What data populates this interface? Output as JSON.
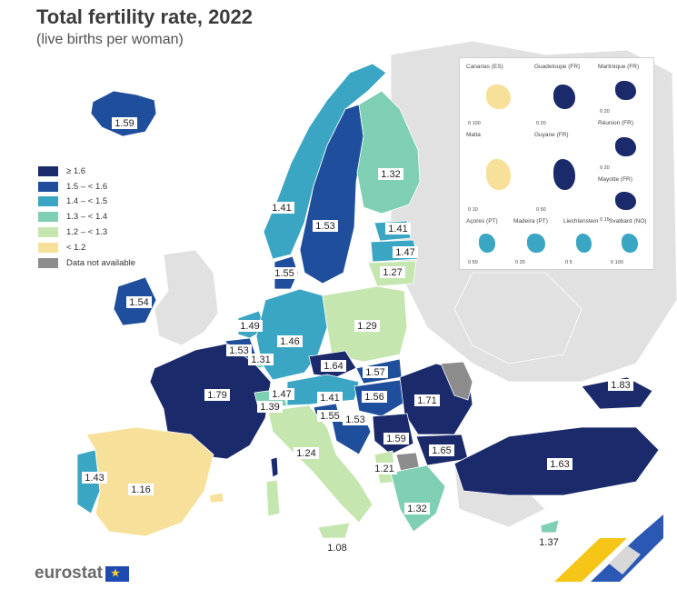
{
  "title": "Total fertility rate, 2022",
  "subtitle": "(live births per woman)",
  "legend": {
    "items": [
      {
        "label": "≥ 1.6",
        "color": "#1b2a6b"
      },
      {
        "label": "1.5 – < 1.6",
        "color": "#1f4f9c"
      },
      {
        "label": "1.4 – < 1.5",
        "color": "#3ba6c4"
      },
      {
        "label": "1.3 – < 1.4",
        "color": "#7fcfb4"
      },
      {
        "label": "1.2 – < 1.3",
        "color": "#c6e6b0"
      },
      {
        "label": "< 1.2",
        "color": "#f7e19a"
      },
      {
        "label": "Data not available",
        "color": "#8c8c8c"
      }
    ]
  },
  "map_values": [
    {
      "country": "Iceland",
      "value": "1.59"
    },
    {
      "country": "Norway",
      "value": "1.41"
    },
    {
      "country": "Sweden",
      "value": "1.53"
    },
    {
      "country": "Finland",
      "value": "1.32"
    },
    {
      "country": "Estonia",
      "value": "1.41"
    },
    {
      "country": "Latvia",
      "value": "1.47"
    },
    {
      "country": "Lithuania",
      "value": "1.27"
    },
    {
      "country": "Denmark",
      "value": "1.55"
    },
    {
      "country": "Ireland",
      "value": "1.54"
    },
    {
      "country": "Netherlands",
      "value": "1.49"
    },
    {
      "country": "Belgium",
      "value": "1.53"
    },
    {
      "country": "Luxembourg",
      "value": "1.31"
    },
    {
      "country": "Germany",
      "value": "1.46"
    },
    {
      "country": "Poland",
      "value": "1.29"
    },
    {
      "country": "France",
      "value": "1.79"
    },
    {
      "country": "Czechia",
      "value": "1.64"
    },
    {
      "country": "Slovakia",
      "value": "1.57"
    },
    {
      "country": "Switzerland",
      "value": "1.39"
    },
    {
      "country": "Liechtenstein",
      "value": "1.47"
    },
    {
      "country": "Austria",
      "value": "1.41"
    },
    {
      "country": "Hungary",
      "value": "1.56"
    },
    {
      "country": "Romania",
      "value": "1.71"
    },
    {
      "country": "Moldova",
      "value": "1.83"
    },
    {
      "country": "Slovenia",
      "value": "1.55"
    },
    {
      "country": "Croatia",
      "value": "1.53"
    },
    {
      "country": "Serbia",
      "value": "1.59"
    },
    {
      "country": "Bulgaria",
      "value": "1.65"
    },
    {
      "country": "Italy",
      "value": "1.24"
    },
    {
      "country": "Montenegro",
      "value": "1.21"
    },
    {
      "country": "Greece",
      "value": "1.32"
    },
    {
      "country": "Turkey",
      "value": "1.63"
    },
    {
      "country": "Portugal",
      "value": "1.43"
    },
    {
      "country": "Spain",
      "value": "1.16"
    },
    {
      "country": "Malta",
      "value": "1.08"
    },
    {
      "country": "Cyprus",
      "value": "1.37"
    }
  ],
  "insets": [
    {
      "label": "Canarias (ES)",
      "scale": "0   100"
    },
    {
      "label": "Guadeloupe (FR)",
      "scale": "0   20"
    },
    {
      "label": "Martinique (FR)",
      "scale": "0   20"
    },
    {
      "label": "Réunion (FR)",
      "scale": "0   20"
    },
    {
      "label": "Malta",
      "scale": "0   10"
    },
    {
      "label": "Guyane (FR)",
      "scale": "0   50"
    },
    {
      "label": "Mayotte (FR)",
      "scale": "0   15"
    },
    {
      "label": "Açores (PT)",
      "scale": "0   50"
    },
    {
      "label": "Madeira (PT)",
      "scale": "0   20"
    },
    {
      "label": "Liechtenstein",
      "scale": "0   5"
    },
    {
      "label": "Svalbard (NO)",
      "scale": "0   100"
    }
  ],
  "logo": {
    "text": "eurostat",
    "flag_icon": "eu-flag-icon"
  }
}
